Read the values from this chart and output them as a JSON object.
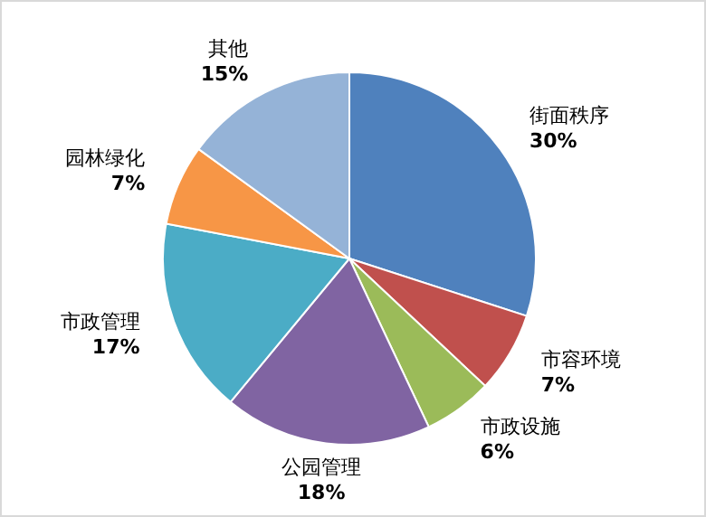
{
  "chart_data": {
    "type": "pie",
    "categories": [
      "街面秩序",
      "市容环境",
      "市政设施",
      "公园管理",
      "市政管理",
      "园林绿化",
      "其他"
    ],
    "values": [
      30,
      7,
      6,
      18,
      17,
      7,
      15
    ],
    "value_labels": [
      "30%",
      "7%",
      "6%",
      "18%",
      "17%",
      "7%",
      "15%"
    ],
    "colors": [
      "#4f81bd",
      "#c0504d",
      "#9bbb59",
      "#8064a2",
      "#4bacc6",
      "#f79646",
      "#95b3d7"
    ]
  }
}
